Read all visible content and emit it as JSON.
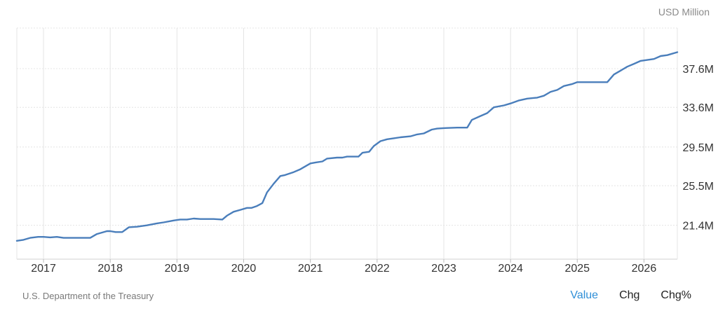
{
  "header": {
    "unit": "USD Million"
  },
  "footer": {
    "source": "U.S. Department of the Treasury",
    "tabs": [
      {
        "label": "Value",
        "active": true
      },
      {
        "label": "Chg",
        "active": false
      },
      {
        "label": "Chg%",
        "active": false
      }
    ]
  },
  "colors": {
    "line": "#4a7ebb",
    "active_tab": "#2f8fd7",
    "grid": "#e4e4e4"
  },
  "chart_data": {
    "type": "line",
    "title": "",
    "xlabel": "",
    "ylabel": "",
    "unit": "USD Million",
    "xlim": [
      2016.6,
      2026.5
    ],
    "ylim": [
      17.9,
      41.8
    ],
    "x_ticks": [
      2017,
      2018,
      2019,
      2020,
      2021,
      2022,
      2023,
      2024,
      2025,
      2026
    ],
    "x_tick_labels": [
      "2017",
      "2018",
      "2019",
      "2020",
      "2021",
      "2022",
      "2023",
      "2024",
      "2025",
      "2026"
    ],
    "y_ticks": [
      21.4,
      25.5,
      29.5,
      33.6,
      37.6
    ],
    "y_tick_labels": [
      "21.4M",
      "25.5M",
      "29.5M",
      "33.6M",
      "37.6M"
    ],
    "grid": true,
    "series": [
      {
        "values": [
          [
            2016.6,
            19.8
          ],
          [
            2016.7,
            19.9
          ],
          [
            2016.8,
            20.1
          ],
          [
            2016.92,
            20.2
          ],
          [
            2017.0,
            20.2
          ],
          [
            2017.1,
            20.15
          ],
          [
            2017.2,
            20.2
          ],
          [
            2017.3,
            20.1
          ],
          [
            2017.6,
            20.1
          ],
          [
            2017.7,
            20.1
          ],
          [
            2017.8,
            20.5
          ],
          [
            2017.95,
            20.8
          ],
          [
            2018.0,
            20.8
          ],
          [
            2018.08,
            20.7
          ],
          [
            2018.18,
            20.7
          ],
          [
            2018.28,
            21.2
          ],
          [
            2018.4,
            21.25
          ],
          [
            2018.55,
            21.4
          ],
          [
            2018.7,
            21.6
          ],
          [
            2018.8,
            21.7
          ],
          [
            2018.95,
            21.9
          ],
          [
            2019.05,
            22.0
          ],
          [
            2019.15,
            22.0
          ],
          [
            2019.25,
            22.1
          ],
          [
            2019.35,
            22.05
          ],
          [
            2019.55,
            22.05
          ],
          [
            2019.68,
            22.0
          ],
          [
            2019.75,
            22.4
          ],
          [
            2019.85,
            22.8
          ],
          [
            2019.95,
            23.0
          ],
          [
            2020.05,
            23.2
          ],
          [
            2020.12,
            23.2
          ],
          [
            2020.2,
            23.4
          ],
          [
            2020.28,
            23.7
          ],
          [
            2020.35,
            24.8
          ],
          [
            2020.45,
            25.7
          ],
          [
            2020.55,
            26.5
          ],
          [
            2020.62,
            26.6
          ],
          [
            2020.75,
            26.9
          ],
          [
            2020.85,
            27.2
          ],
          [
            2020.95,
            27.6
          ],
          [
            2021.0,
            27.8
          ],
          [
            2021.08,
            27.9
          ],
          [
            2021.18,
            28.0
          ],
          [
            2021.25,
            28.3
          ],
          [
            2021.4,
            28.4
          ],
          [
            2021.48,
            28.4
          ],
          [
            2021.55,
            28.5
          ],
          [
            2021.62,
            28.5
          ],
          [
            2021.72,
            28.5
          ],
          [
            2021.78,
            28.9
          ],
          [
            2021.88,
            29.0
          ],
          [
            2021.95,
            29.6
          ],
          [
            2022.05,
            30.1
          ],
          [
            2022.15,
            30.3
          ],
          [
            2022.25,
            30.4
          ],
          [
            2022.35,
            30.5
          ],
          [
            2022.5,
            30.6
          ],
          [
            2022.6,
            30.8
          ],
          [
            2022.7,
            30.9
          ],
          [
            2022.82,
            31.3
          ],
          [
            2022.9,
            31.4
          ],
          [
            2023.0,
            31.45
          ],
          [
            2023.2,
            31.5
          ],
          [
            2023.35,
            31.5
          ],
          [
            2023.42,
            32.3
          ],
          [
            2023.55,
            32.7
          ],
          [
            2023.65,
            33.0
          ],
          [
            2023.75,
            33.6
          ],
          [
            2023.9,
            33.8
          ],
          [
            2024.0,
            34.0
          ],
          [
            2024.12,
            34.3
          ],
          [
            2024.25,
            34.5
          ],
          [
            2024.4,
            34.6
          ],
          [
            2024.5,
            34.8
          ],
          [
            2024.6,
            35.2
          ],
          [
            2024.7,
            35.4
          ],
          [
            2024.8,
            35.8
          ],
          [
            2024.92,
            36.0
          ],
          [
            2025.0,
            36.2
          ],
          [
            2025.2,
            36.2
          ],
          [
            2025.35,
            36.2
          ],
          [
            2025.45,
            36.2
          ],
          [
            2025.55,
            37.0
          ],
          [
            2025.65,
            37.4
          ],
          [
            2025.75,
            37.8
          ],
          [
            2025.85,
            38.1
          ],
          [
            2025.95,
            38.4
          ],
          [
            2026.05,
            38.5
          ],
          [
            2026.15,
            38.6
          ],
          [
            2026.25,
            38.9
          ],
          [
            2026.35,
            39.0
          ],
          [
            2026.5,
            39.3
          ]
        ]
      }
    ]
  }
}
